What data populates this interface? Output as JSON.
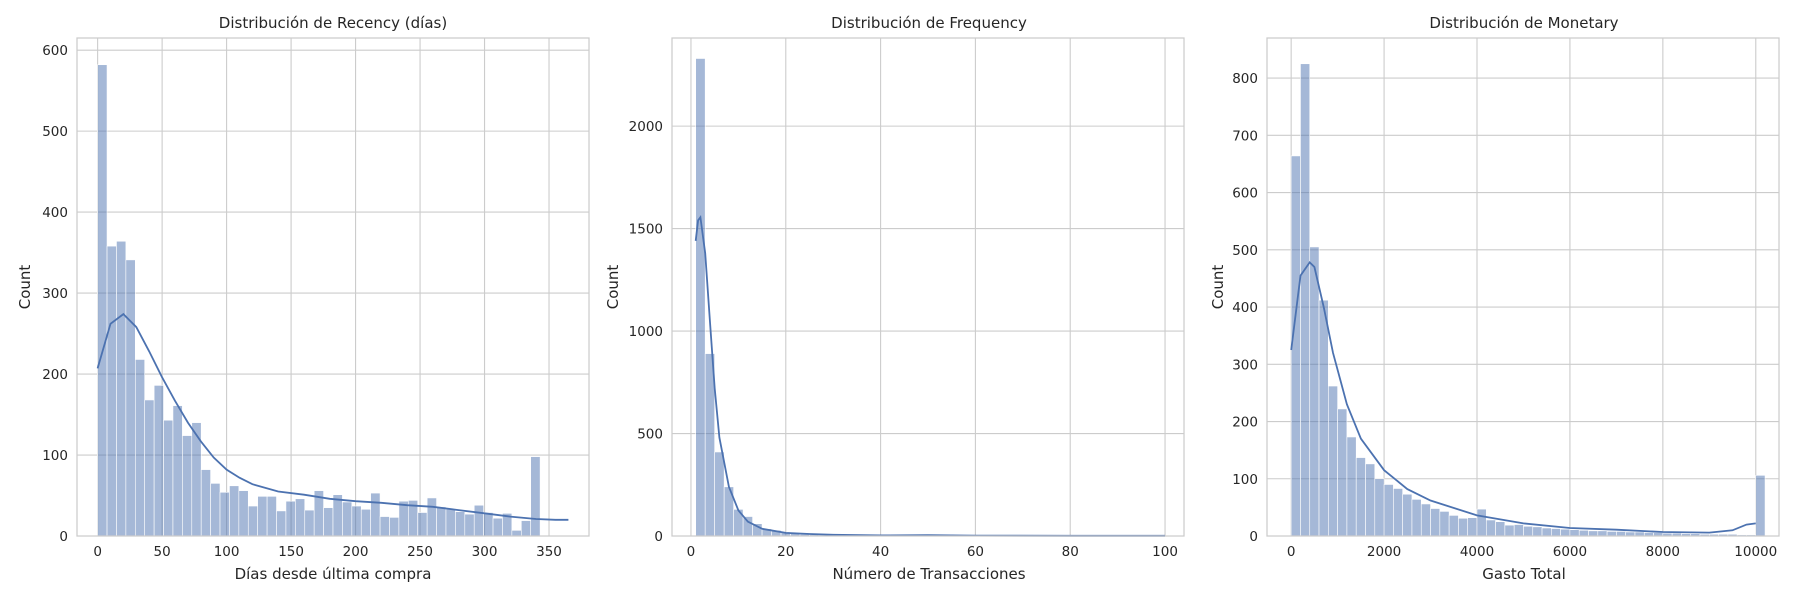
{
  "chart_data": [
    {
      "type": "histogram",
      "title": "Distribución de Recency (días)",
      "xlabel": "Días desde última compra",
      "ylabel": "Count",
      "xlim": [
        -16,
        381
      ],
      "ylim": [
        0,
        615
      ],
      "xticks": [
        0,
        50,
        100,
        150,
        200,
        250,
        300,
        350
      ],
      "yticks": [
        0,
        100,
        200,
        300,
        400,
        500,
        600
      ],
      "bin_start": 0,
      "bin_width": 7.3,
      "counts": [
        582,
        358,
        364,
        341,
        218,
        168,
        186,
        143,
        161,
        124,
        140,
        82,
        65,
        54,
        62,
        56,
        37,
        49,
        49,
        31,
        43,
        46,
        32,
        56,
        35,
        51,
        42,
        37,
        33,
        53,
        24,
        23,
        43,
        44,
        29,
        47,
        36,
        33,
        30,
        27,
        38,
        29,
        22,
        28,
        7,
        19,
        98
      ],
      "kde": {
        "x": [
          0,
          10,
          20,
          30,
          40,
          50,
          60,
          70,
          80,
          90,
          100,
          110,
          120,
          140,
          160,
          180,
          200,
          220,
          240,
          260,
          280,
          300,
          320,
          340,
          355,
          365
        ],
        "y": [
          207,
          262,
          274,
          258,
          228,
          196,
          167,
          140,
          117,
          97,
          82,
          72,
          64,
          55,
          51,
          46,
          43,
          41,
          38,
          36,
          32,
          28,
          24,
          21,
          20,
          20
        ]
      }
    },
    {
      "type": "histogram",
      "title": "Distribución de Frequency",
      "xlabel": "Número de Transacciones",
      "ylabel": "Count",
      "xlim": [
        -4,
        104
      ],
      "ylim": [
        0,
        2430
      ],
      "xticks": [
        0,
        20,
        40,
        60,
        80,
        100
      ],
      "yticks": [
        0,
        500,
        1000,
        1500,
        2000
      ],
      "bin_start": 1,
      "bin_width": 2,
      "counts": [
        2330,
        890,
        410,
        240,
        130,
        95,
        60,
        35,
        28,
        18,
        12,
        8,
        6,
        5,
        4,
        3,
        3,
        2,
        2,
        2,
        2,
        1,
        4,
        1,
        1,
        1,
        1,
        1,
        1,
        1,
        1,
        1,
        1,
        1,
        1,
        1,
        1,
        1,
        1,
        1,
        1,
        1,
        1,
        1,
        1,
        1,
        1,
        1,
        2,
        1
      ],
      "kde": {
        "x": [
          1,
          1.5,
          2,
          3,
          4,
          5,
          6,
          8,
          10,
          12,
          15,
          20,
          25,
          30,
          40,
          50,
          60,
          80,
          100
        ],
        "y": [
          1440,
          1540,
          1555,
          1380,
          1050,
          720,
          480,
          240,
          125,
          70,
          35,
          15,
          10,
          6,
          3,
          4,
          2,
          1,
          1
        ]
      }
    },
    {
      "type": "histogram",
      "title": "Distribución de Monetary",
      "xlabel": "Gasto Total",
      "ylabel": "Count",
      "xlim": [
        -520,
        10500
      ],
      "ylim": [
        0,
        870
      ],
      "xticks": [
        0,
        2000,
        4000,
        6000,
        8000,
        10000
      ],
      "yticks": [
        0,
        100,
        200,
        300,
        400,
        500,
        600,
        700,
        800
      ],
      "bin_start": 0,
      "bin_width": 200,
      "counts": [
        664,
        825,
        505,
        412,
        262,
        222,
        173,
        137,
        126,
        100,
        90,
        83,
        73,
        64,
        56,
        48,
        43,
        36,
        31,
        32,
        47,
        28,
        25,
        19,
        20,
        17,
        16,
        14,
        13,
        12,
        11,
        10,
        9,
        9,
        8,
        8,
        7,
        7,
        6,
        6,
        5,
        5,
        4,
        4,
        3,
        3,
        3,
        3,
        2,
        2,
        106
      ],
      "kde": {
        "x": [
          0,
          200,
          400,
          500,
          700,
          900,
          1200,
          1500,
          2000,
          2500,
          3000,
          4000,
          5000,
          6000,
          7000,
          8000,
          9000,
          9500,
          9800,
          10000
        ],
        "y": [
          325,
          455,
          478,
          470,
          400,
          320,
          230,
          170,
          115,
          82,
          62,
          36,
          22,
          14,
          11,
          7,
          6,
          10,
          20,
          22
        ]
      }
    }
  ]
}
